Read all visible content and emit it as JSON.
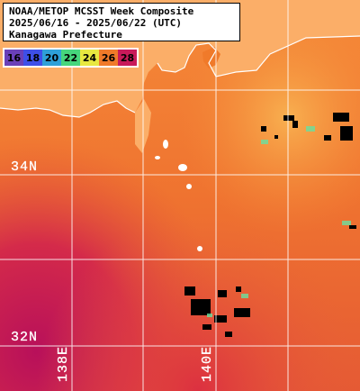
{
  "title": {
    "line1": "NOAA/METOP MCSST Week Composite",
    "line2": "2025/06/16 - 2025/06/22 (UTC)",
    "line3": "Kanagawa Prefecture"
  },
  "legend": {
    "items": [
      {
        "label": "16",
        "color": "#6a40b8"
      },
      {
        "label": "18",
        "color": "#3e4fe8"
      },
      {
        "label": "20",
        "color": "#2ea0d8"
      },
      {
        "label": "22",
        "color": "#46d67c"
      },
      {
        "label": "24",
        "color": "#e8e840"
      },
      {
        "label": "26",
        "color": "#f07a2a"
      },
      {
        "label": "28",
        "color": "#c81a5a"
      }
    ]
  },
  "grid_labels": {
    "lat_34": "34N",
    "lat_32": "32N",
    "lon_138": "138E",
    "lon_140": "140E"
  },
  "colors": {
    "sea_warm": "#f07a2a",
    "sea_hot": "#d8363a",
    "land": "#fbb06a",
    "cloud": "#000000",
    "grid": "#ffffff"
  }
}
